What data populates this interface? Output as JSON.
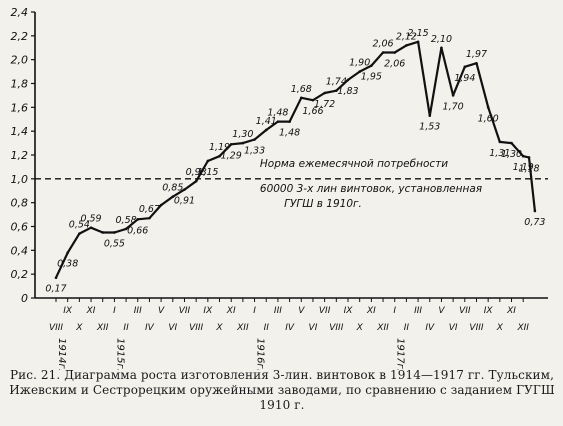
{
  "chart_data": {
    "type": "line",
    "ylim": [
      0,
      2.4
    ],
    "yticks": [
      "0",
      "0,2",
      "0,4",
      "0,6",
      "0,8",
      "1,0",
      "1,2",
      "1,4",
      "1,6",
      "1,8",
      "2,0",
      "2,2",
      "2,4"
    ],
    "ytick_values": [
      0,
      0.2,
      0.4,
      0.6,
      0.8,
      1.0,
      1.2,
      1.4,
      1.6,
      1.8,
      2.0,
      2.2,
      2.4
    ],
    "months": [
      "VIII",
      "IX",
      "X",
      "XI",
      "XII",
      "I",
      "II",
      "III",
      "IV",
      "V",
      "VI",
      "VII",
      "VIII",
      "IX",
      "X",
      "XI",
      "XII",
      "I",
      "II",
      "III",
      "IV",
      "V",
      "VI",
      "VII",
      "VIII",
      "IX",
      "X",
      "XI",
      "XII",
      "I",
      "II",
      "III",
      "IV",
      "V",
      "VI",
      "VII",
      "VIII",
      "IX",
      "X",
      "XI",
      "XII"
    ],
    "years": [
      {
        "label": "1914г.",
        "month_index": 0
      },
      {
        "label": "1915г.",
        "month_index": 5
      },
      {
        "label": "1916г.",
        "month_index": 17
      },
      {
        "label": "1917г.",
        "month_index": 29
      }
    ],
    "grid": false,
    "series": [
      {
        "values": [
          0.17,
          0.38,
          0.54,
          0.59,
          0.55,
          0.55,
          0.58,
          0.66,
          0.67,
          0.78,
          0.85,
          0.91,
          0.98,
          1.15,
          1.19,
          1.29,
          1.3,
          1.33,
          1.41,
          1.48,
          1.48,
          1.68,
          1.66,
          1.72,
          1.74,
          1.83,
          1.9,
          1.95,
          2.06,
          2.06,
          2.12,
          2.15,
          1.53,
          2.1,
          1.7,
          1.94,
          1.97,
          1.6,
          1.31,
          1.3,
          1.19,
          1.18,
          0.73
        ],
        "x_positions": [
          0,
          1,
          2,
          3,
          4,
          5,
          6,
          7,
          8,
          9,
          10,
          11,
          12,
          13,
          14,
          15,
          16,
          17,
          18,
          19,
          20,
          21,
          22,
          23,
          24,
          25,
          26,
          27,
          28,
          29,
          30,
          31,
          32,
          33,
          34,
          35,
          36,
          37,
          38,
          39,
          40,
          40.5,
          41
        ],
        "labels": [
          {
            "text": "0,17",
            "point": 0
          },
          {
            "text": "0,38",
            "point": 1
          },
          {
            "text": "0,54",
            "point": 2
          },
          {
            "text": "0,59",
            "point": 3
          },
          {
            "text": "0,55",
            "point": 5
          },
          {
            "text": "0,58",
            "point": 6
          },
          {
            "text": "0,66",
            "point": 7
          },
          {
            "text": "0,67",
            "point": 8
          },
          {
            "text": "0,85",
            "point": 10
          },
          {
            "text": "0,91",
            "point": 11
          },
          {
            "text": "0,98",
            "point": 12
          },
          {
            "text": "1,15",
            "point": 13
          },
          {
            "text": "1,19",
            "point": 14
          },
          {
            "text": "1,29",
            "point": 15
          },
          {
            "text": "1,30",
            "point": 16
          },
          {
            "text": "1,33",
            "point": 17
          },
          {
            "text": "1,41",
            "point": 18
          },
          {
            "text": "1,48",
            "point": 19
          },
          {
            "text": "1,48",
            "point": 20
          },
          {
            "text": "1,68",
            "point": 21
          },
          {
            "text": "1,66",
            "point": 22
          },
          {
            "text": "1,72",
            "point": 23
          },
          {
            "text": "1,74",
            "point": 24
          },
          {
            "text": "1,83",
            "point": 25
          },
          {
            "text": "1,90",
            "point": 26
          },
          {
            "text": "1,95",
            "point": 27
          },
          {
            "text": "2,06",
            "point": 28
          },
          {
            "text": "2,06",
            "point": 29
          },
          {
            "text": "2,12",
            "point": 30
          },
          {
            "text": "2,15",
            "point": 31
          },
          {
            "text": "1,53",
            "point": 32
          },
          {
            "text": "2,10",
            "point": 33
          },
          {
            "text": "1,70",
            "point": 34
          },
          {
            "text": "1,94",
            "point": 35
          },
          {
            "text": "1,97",
            "point": 36
          },
          {
            "text": "1,60",
            "point": 37
          },
          {
            "text": "1,31",
            "point": 38
          },
          {
            "text": "1,30",
            "point": 39
          },
          {
            "text": "1,19",
            "point": 40
          },
          {
            "text": "1,18",
            "point": 41
          },
          {
            "text": "0,73",
            "point": 42
          }
        ]
      }
    ],
    "reference_line": {
      "value": 1.0,
      "style": "dashed"
    },
    "annotation": [
      "Норма ежемесячной потребности",
      "60000 3-х лин винтовок, установленная",
      "ГУГШ в 1910г."
    ]
  },
  "caption": "Рис. 21. Диаграмма роста изготовления 3-лин. винтовок в 1914—1917 гг. Тульским, Ижевским и Сестрорецким оружейными заводами, по сравнению с заданием ГУГШ 1910 г."
}
